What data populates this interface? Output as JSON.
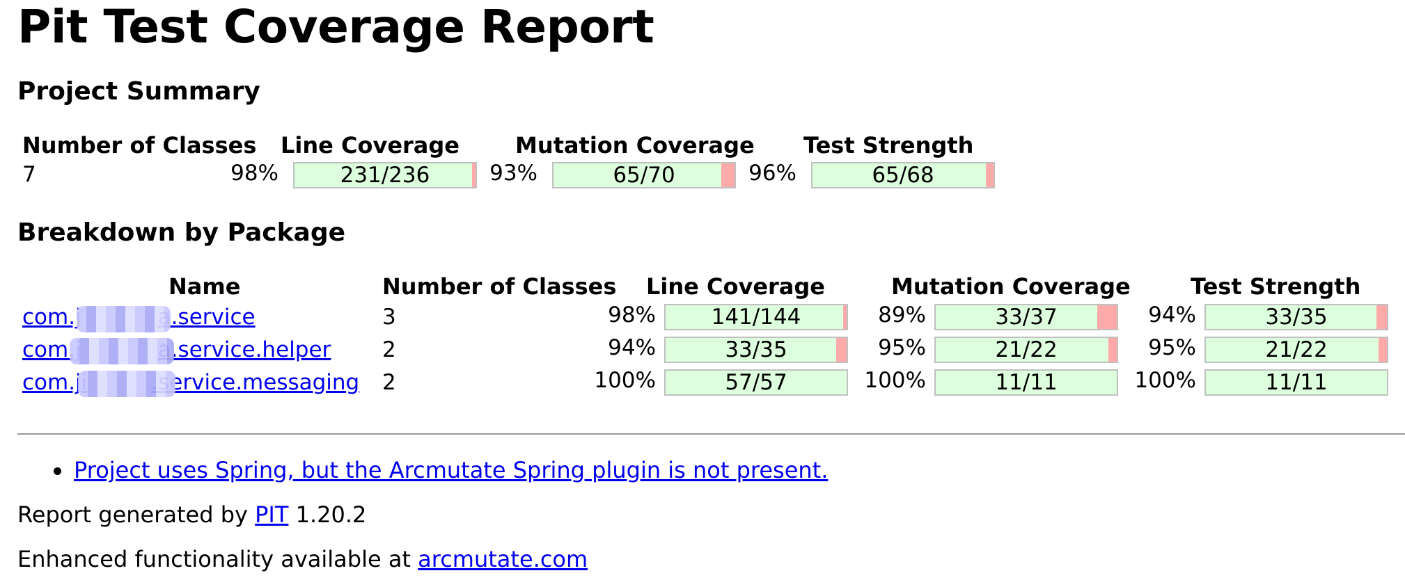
{
  "title": "Pit Test Coverage Report",
  "project_summary": {
    "heading": "Project Summary",
    "headers": {
      "classes": "Number of Classes",
      "line": "Line Coverage",
      "mutation": "Mutation Coverage",
      "strength": "Test Strength"
    },
    "classes": "7",
    "line": {
      "pct": "98%",
      "ratio": "231/236",
      "covered": 231,
      "total": 236
    },
    "mutation": {
      "pct": "93%",
      "ratio": "65/70",
      "covered": 65,
      "total": 70
    },
    "strength": {
      "pct": "96%",
      "ratio": "65/68",
      "covered": 65,
      "total": 68
    }
  },
  "breakdown": {
    "heading": "Breakdown by Package",
    "headers": {
      "name": "Name",
      "classes": "Number of Classes",
      "line": "Line Coverage",
      "mutation": "Mutation Coverage",
      "strength": "Test Strength"
    },
    "rows": [
      {
        "name_prefix": "com.j",
        "name_suffix": "a.service",
        "classes": "3",
        "line": {
          "pct": "98%",
          "ratio": "141/144",
          "covered": 141,
          "total": 144
        },
        "mutation": {
          "pct": "89%",
          "ratio": "33/37",
          "covered": 33,
          "total": 37
        },
        "strength": {
          "pct": "94%",
          "ratio": "33/35",
          "covered": 33,
          "total": 35
        }
      },
      {
        "name_prefix": "com.j",
        "name_suffix": "a.service.helper",
        "classes": "2",
        "line": {
          "pct": "94%",
          "ratio": "33/35",
          "covered": 33,
          "total": 35
        },
        "mutation": {
          "pct": "95%",
          "ratio": "21/22",
          "covered": 21,
          "total": 22
        },
        "strength": {
          "pct": "95%",
          "ratio": "21/22",
          "covered": 21,
          "total": 22
        }
      },
      {
        "name_prefix": "com.ji",
        "name_suffix": ".service.messaging",
        "classes": "2",
        "line": {
          "pct": "100%",
          "ratio": "57/57",
          "covered": 57,
          "total": 57
        },
        "mutation": {
          "pct": "100%",
          "ratio": "11/11",
          "covered": 11,
          "total": 11
        },
        "strength": {
          "pct": "100%",
          "ratio": "11/11",
          "covered": 11,
          "total": 11
        }
      }
    ]
  },
  "warnings": [
    "Project uses Spring, but the Arcmutate Spring plugin is not present."
  ],
  "footer": {
    "generated_prefix": "Report generated by",
    "pit_link": "PIT",
    "version": "1.20.2",
    "enhanced_prefix": "Enhanced functionality available at",
    "arcmutate_link": "arcmutate.com"
  },
  "colors": {
    "covered": "#ddffdd",
    "uncovered": "#ffaaaa",
    "link": "#0000ee"
  }
}
